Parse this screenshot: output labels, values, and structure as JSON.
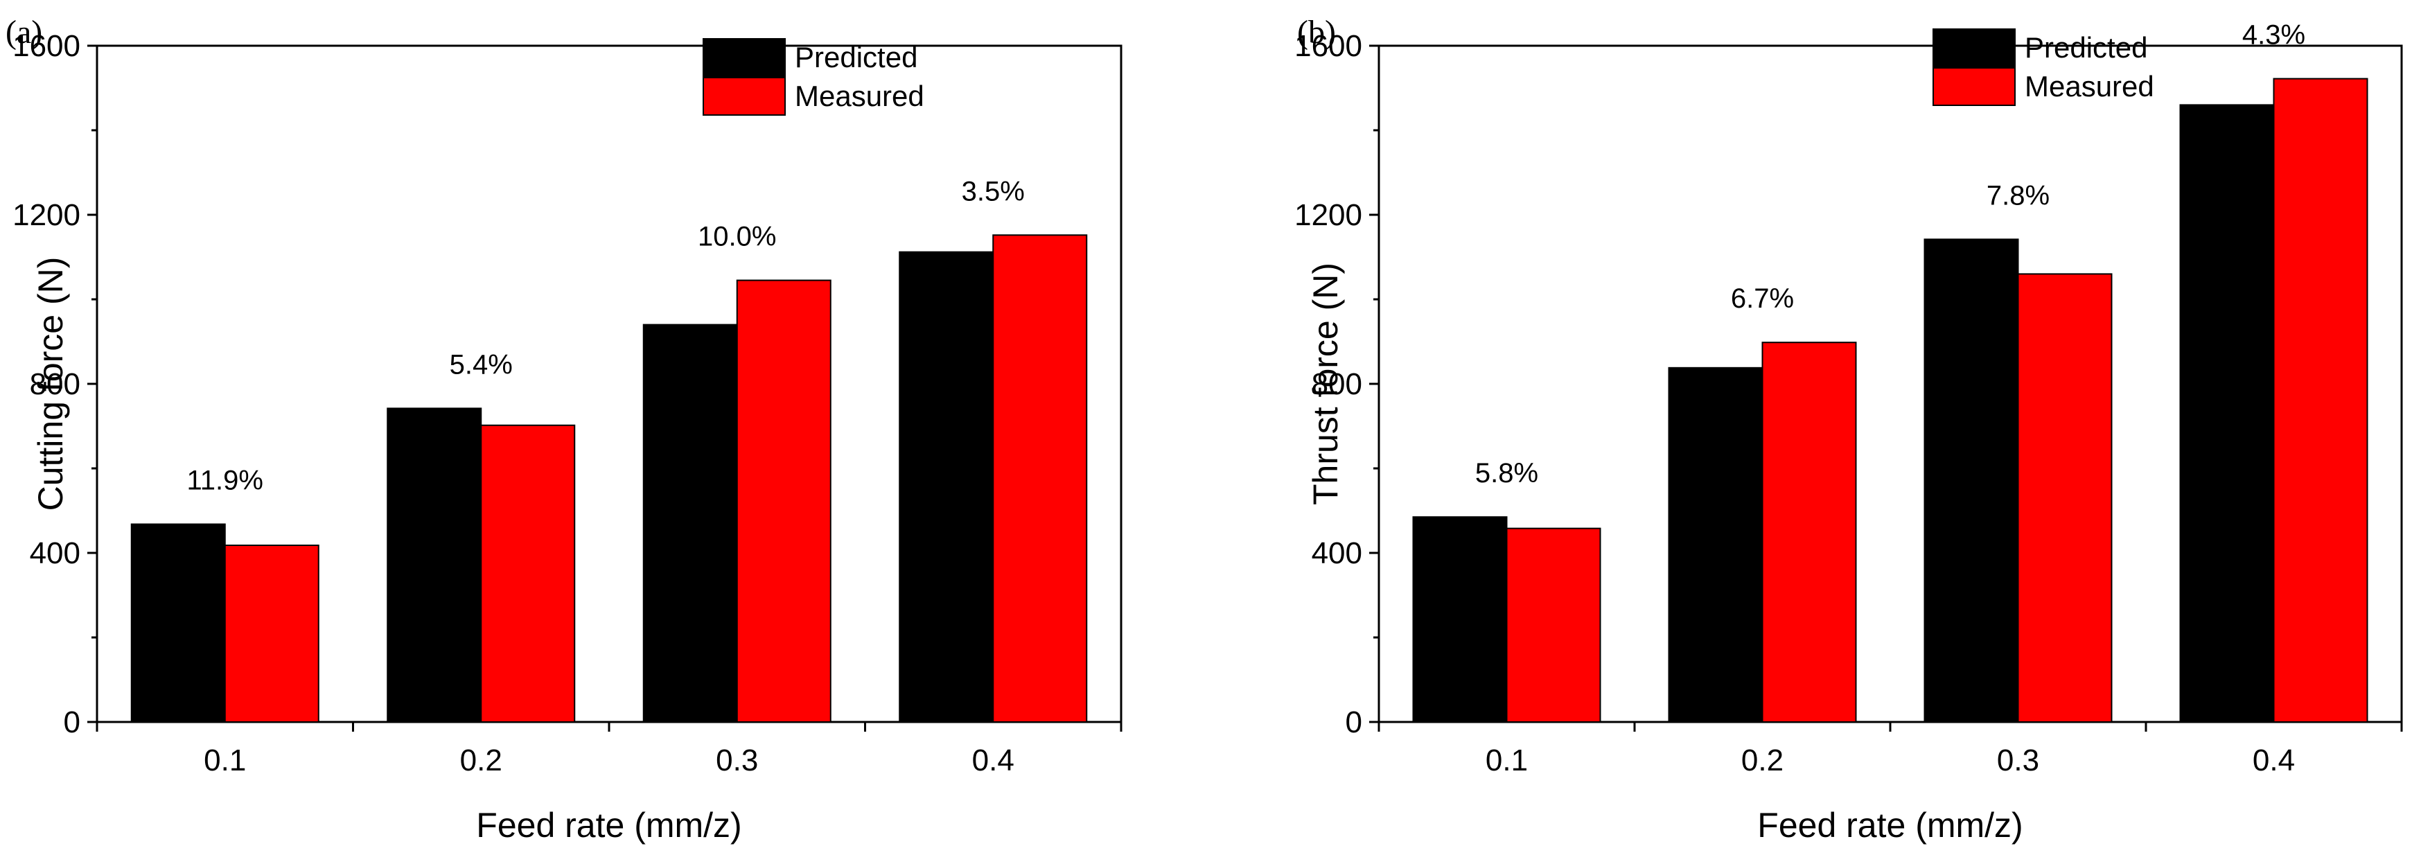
{
  "chart_data": [
    {
      "type": "bar",
      "panel_label": "(a)",
      "title": "",
      "xlabel": "Feed rate (mm/z)",
      "ylabel": "Cutting force (N)",
      "categories": [
        "0.1",
        "0.2",
        "0.3",
        "0.4"
      ],
      "series": [
        {
          "name": "Predicted",
          "color": "#000000",
          "values": [
            468,
            742,
            940,
            1112
          ]
        },
        {
          "name": "Measured",
          "color": "#ff0000",
          "values": [
            418,
            702,
            1045,
            1152
          ]
        }
      ],
      "annotations": [
        "11.9%",
        "5.4%",
        "10.0%",
        "3.5%"
      ],
      "ylim": [
        0,
        1600
      ],
      "yticks": [
        "0",
        "400",
        "800",
        "1200",
        "1600"
      ],
      "legend": "top"
    },
    {
      "type": "bar",
      "panel_label": "(b)",
      "title": "",
      "xlabel": "Feed rate (mm/z)",
      "ylabel": "Thrust force (N)",
      "categories": [
        "0.1",
        "0.2",
        "0.3",
        "0.4"
      ],
      "series": [
        {
          "name": "Predicted",
          "color": "#000000",
          "values": [
            485,
            838,
            1142,
            1460
          ]
        },
        {
          "name": "Measured",
          "color": "#ff0000",
          "values": [
            458,
            898,
            1060,
            1522
          ]
        }
      ],
      "annotations": [
        "5.8%",
        "6.7%",
        "7.8%",
        "4.3%"
      ],
      "ylim": [
        0,
        1600
      ],
      "yticks": [
        "0",
        "400",
        "800",
        "1200",
        "1600"
      ],
      "legend": "top"
    }
  ]
}
